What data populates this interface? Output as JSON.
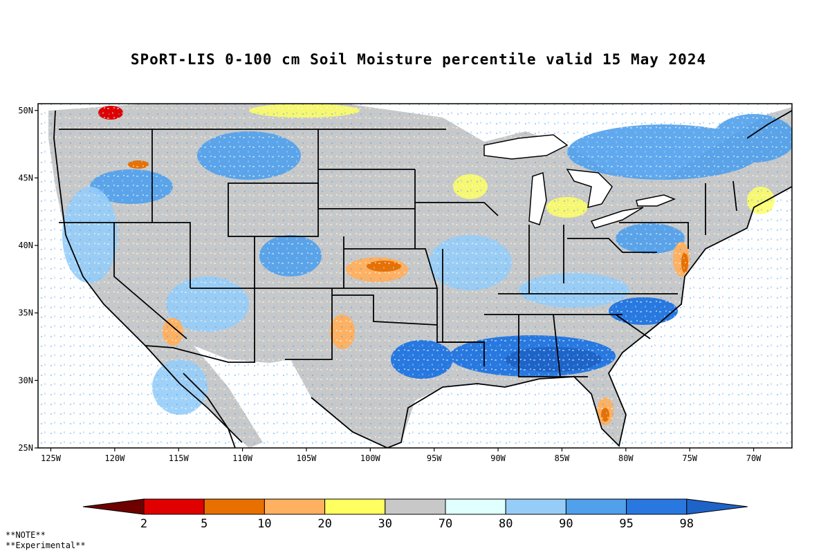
{
  "title": "SPoRT-LIS 0-100 cm Soil Moisture percentile valid 15 May 2024",
  "map": {
    "lat_ticks": [
      "50N",
      "45N",
      "40N",
      "35N",
      "30N",
      "25N"
    ],
    "lon_ticks": [
      "125W",
      "120W",
      "115W",
      "110W",
      "105W",
      "100W",
      "95W",
      "90W",
      "85W",
      "80W",
      "75W",
      "70W"
    ],
    "lon_range": [
      -126,
      -67
    ],
    "lat_range": [
      25,
      50.5
    ]
  },
  "colorbar": {
    "labels": [
      "2",
      "5",
      "10",
      "20",
      "30",
      "70",
      "80",
      "90",
      "95",
      "98"
    ],
    "colors": [
      "#6e0000",
      "#e00000",
      "#e87000",
      "#ffb060",
      "#ffff60",
      "#c8c8c8",
      "#e0ffff",
      "#96cdf8",
      "#50a0ec",
      "#2878e0",
      "#1e64c8"
    ]
  },
  "notes": [
    "**NOTE**",
    "**Experimental**"
  ]
}
